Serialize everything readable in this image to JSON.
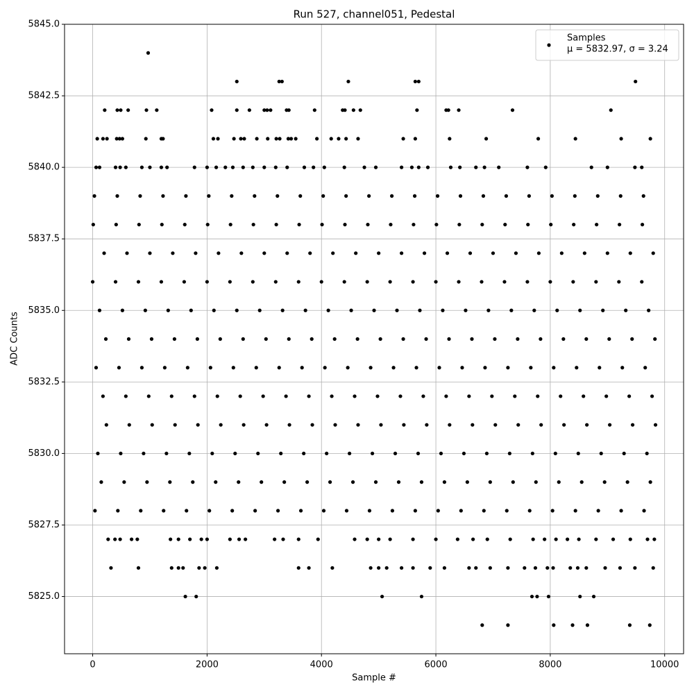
{
  "chart_data": {
    "type": "scatter",
    "title": "Run 527, channel051, Pedestal",
    "xlabel": "Sample #",
    "ylabel": "ADC Counts",
    "xlim": [
      -492,
      10331
    ],
    "ylim": [
      5823,
      5845
    ],
    "xticks": [
      0,
      2000,
      4000,
      6000,
      8000,
      10000
    ],
    "yticks": [
      {
        "value": 5825,
        "label": "5825.0"
      },
      5827.5,
      {
        "value": 5830,
        "label": "5830.0"
      },
      5832.5,
      {
        "value": 5835,
        "label": "5835.0"
      },
      5837.5,
      {
        "value": 5840,
        "label": "5840.0"
      },
      5842.5,
      {
        "value": 5845,
        "label": "5845.0"
      }
    ],
    "grid": true,
    "legend": "upper right",
    "legend_note": "μ = 5832.97, σ = 3.24",
    "series": [
      {
        "name": "Samples",
        "color": "#000000",
        "x": [
          970,
          2520,
          3260,
          3310,
          4470,
          5640,
          5700,
          9490,
          210,
          430,
          490,
          620,
          940,
          1120,
          2080,
          2520,
          2740,
          3000,
          3050,
          3110,
          3390,
          3430,
          3880,
          4370,
          4410,
          4560,
          4680,
          5670,
          6180,
          6220,
          6400,
          7340,
          9060,
          80,
          180,
          250,
          420,
          470,
          520,
          930,
          1200,
          1230,
          2110,
          2190,
          2470,
          2590,
          2650,
          2870,
          3060,
          3210,
          3270,
          3420,
          3470,
          3550,
          3920,
          4170,
          4300,
          4430,
          4640,
          5430,
          5640,
          6240,
          6880,
          7790,
          8440,
          9240,
          9750,
          60,
          120,
          400,
          480,
          580,
          860,
          1000,
          1200,
          1300,
          1780,
          2000,
          2160,
          2320,
          2450,
          2630,
          2800,
          3000,
          3200,
          3400,
          3700,
          3860,
          4050,
          4400,
          4750,
          4950,
          5400,
          5580,
          5700,
          5860,
          6260,
          6420,
          6700,
          6850,
          7100,
          7600,
          7920,
          8720,
          9000,
          9480,
          9600,
          30,
          430,
          830,
          1230,
          1630,
          2030,
          2430,
          2830,
          3230,
          3630,
          4030,
          4430,
          4830,
          5230,
          5630,
          6030,
          6430,
          6830,
          7230,
          7630,
          8030,
          8430,
          8830,
          9230,
          9630,
          10,
          410,
          810,
          1210,
          1610,
          2010,
          2410,
          2810,
          3210,
          3610,
          4010,
          4410,
          4810,
          5210,
          5610,
          6010,
          6410,
          6810,
          7210,
          7610,
          8010,
          8410,
          8810,
          9210,
          9610,
          200,
          600,
          1000,
          1400,
          1800,
          2200,
          2600,
          3000,
          3400,
          3800,
          4200,
          4600,
          5000,
          5400,
          5800,
          6200,
          6600,
          7000,
          7400,
          7800,
          8200,
          8600,
          9000,
          9400,
          9800,
          0,
          400,
          800,
          1200,
          1600,
          2000,
          2400,
          2800,
          3200,
          3600,
          4000,
          4400,
          4800,
          5200,
          5600,
          6000,
          6400,
          6800,
          7200,
          7600,
          8000,
          8400,
          8800,
          9200,
          9600,
          120,
          520,
          920,
          1320,
          1720,
          2120,
          2520,
          2920,
          3320,
          3720,
          4120,
          4520,
          4920,
          5320,
          5720,
          6120,
          6520,
          6920,
          7320,
          7720,
          8120,
          8520,
          8920,
          9320,
          9720,
          230,
          630,
          1030,
          1430,
          1830,
          2230,
          2630,
          3030,
          3430,
          3830,
          4230,
          4630,
          5030,
          5430,
          5830,
          6230,
          6630,
          7030,
          7430,
          7830,
          8230,
          8630,
          9030,
          9430,
          9830,
          60,
          460,
          860,
          1260,
          1660,
          2060,
          2460,
          2860,
          3260,
          3660,
          4060,
          4460,
          4860,
          5260,
          5660,
          6060,
          6460,
          6860,
          7260,
          7660,
          8060,
          8460,
          8860,
          9260,
          9660,
          180,
          580,
          980,
          1380,
          1780,
          2180,
          2580,
          2980,
          3380,
          3780,
          4180,
          4580,
          4980,
          5380,
          5780,
          6180,
          6580,
          6980,
          7380,
          7780,
          8180,
          8580,
          8980,
          9380,
          9780,
          240,
          640,
          1040,
          1440,
          1840,
          2240,
          2640,
          3040,
          3440,
          3840,
          4240,
          4640,
          5040,
          5440,
          5840,
          6240,
          6640,
          7040,
          7440,
          7840,
          8240,
          8640,
          9040,
          9440,
          9840,
          90,
          490,
          890,
          1290,
          1690,
          2090,
          2490,
          2890,
          3290,
          3690,
          4090,
          4490,
          4890,
          5290,
          5690,
          6090,
          6490,
          6890,
          7290,
          7690,
          8090,
          8490,
          8890,
          9290,
          9690,
          150,
          550,
          950,
          1350,
          1750,
          2150,
          2550,
          2950,
          3350,
          3750,
          4150,
          4550,
          4950,
          5350,
          5750,
          6150,
          6550,
          6950,
          7350,
          7750,
          8150,
          8550,
          8950,
          9350,
          9750,
          40,
          440,
          840,
          1240,
          1640,
          2040,
          2440,
          2840,
          3240,
          3640,
          4040,
          4440,
          4840,
          5240,
          5640,
          6040,
          6440,
          6840,
          7240,
          7640,
          8040,
          8440,
          8840,
          9240,
          9640,
          270,
          390,
          480,
          680,
          780,
          1360,
          1500,
          1700,
          1900,
          2000,
          2400,
          2560,
          2670,
          3180,
          3330,
          3600,
          3940,
          4580,
          4800,
          5000,
          5200,
          5600,
          6000,
          6380,
          6650,
          6900,
          7300,
          7700,
          7900,
          8100,
          8300,
          8500,
          8800,
          9100,
          9400,
          9700,
          9820,
          320,
          800,
          1380,
          1500,
          1580,
          1860,
          1960,
          2170,
          3600,
          3780,
          4190,
          4860,
          5000,
          5140,
          5400,
          5600,
          5900,
          6150,
          6580,
          6700,
          6950,
          7260,
          7550,
          7740,
          7950,
          8050,
          8350,
          8480,
          8630,
          8960,
          9220,
          9480,
          9800,
          1620,
          1810,
          5060,
          5750,
          7680,
          7770,
          7970,
          8520,
          8760,
          6810,
          7260,
          8060,
          8390,
          8650,
          9390,
          9740
        ],
        "values": [
          5844,
          5843,
          5843,
          5843,
          5843,
          5843,
          5843,
          5843,
          5842,
          5842,
          5842,
          5842,
          5842,
          5842,
          5842,
          5842,
          5842,
          5842,
          5842,
          5842,
          5842,
          5842,
          5842,
          5842,
          5842,
          5842,
          5842,
          5842,
          5842,
          5842,
          5842,
          5842,
          5842,
          5841,
          5841,
          5841,
          5841,
          5841,
          5841,
          5841,
          5841,
          5841,
          5841,
          5841,
          5841,
          5841,
          5841,
          5841,
          5841,
          5841,
          5841,
          5841,
          5841,
          5841,
          5841,
          5841,
          5841,
          5841,
          5841,
          5841,
          5841,
          5841,
          5841,
          5841,
          5841,
          5841,
          5841,
          5840,
          5840,
          5840,
          5840,
          5840,
          5840,
          5840,
          5840,
          5840,
          5840,
          5840,
          5840,
          5840,
          5840,
          5840,
          5840,
          5840,
          5840,
          5840,
          5840,
          5840,
          5840,
          5840,
          5840,
          5840,
          5840,
          5840,
          5840,
          5840,
          5840,
          5840,
          5840,
          5840,
          5840,
          5840,
          5840,
          5840,
          5840,
          5840,
          5840,
          5839,
          5839,
          5839,
          5839,
          5839,
          5839,
          5839,
          5839,
          5839,
          5839,
          5839,
          5839,
          5839,
          5839,
          5839,
          5839,
          5839,
          5839,
          5839,
          5839,
          5839,
          5839,
          5839,
          5839,
          5839,
          5838,
          5838,
          5838,
          5838,
          5838,
          5838,
          5838,
          5838,
          5838,
          5838,
          5838,
          5838,
          5838,
          5838,
          5838,
          5838,
          5838,
          5838,
          5838,
          5838,
          5838,
          5838,
          5838,
          5838,
          5838,
          5837,
          5837,
          5837,
          5837,
          5837,
          5837,
          5837,
          5837,
          5837,
          5837,
          5837,
          5837,
          5837,
          5837,
          5837,
          5837,
          5837,
          5837,
          5837,
          5837,
          5837,
          5837,
          5837,
          5837,
          5837,
          5836,
          5836,
          5836,
          5836,
          5836,
          5836,
          5836,
          5836,
          5836,
          5836,
          5836,
          5836,
          5836,
          5836,
          5836,
          5836,
          5836,
          5836,
          5836,
          5836,
          5836,
          5836,
          5836,
          5836,
          5836,
          5835,
          5835,
          5835,
          5835,
          5835,
          5835,
          5835,
          5835,
          5835,
          5835,
          5835,
          5835,
          5835,
          5835,
          5835,
          5835,
          5835,
          5835,
          5835,
          5835,
          5835,
          5835,
          5835,
          5835,
          5835,
          5834,
          5834,
          5834,
          5834,
          5834,
          5834,
          5834,
          5834,
          5834,
          5834,
          5834,
          5834,
          5834,
          5834,
          5834,
          5834,
          5834,
          5834,
          5834,
          5834,
          5834,
          5834,
          5834,
          5834,
          5834,
          5833,
          5833,
          5833,
          5833,
          5833,
          5833,
          5833,
          5833,
          5833,
          5833,
          5833,
          5833,
          5833,
          5833,
          5833,
          5833,
          5833,
          5833,
          5833,
          5833,
          5833,
          5833,
          5833,
          5833,
          5833,
          5832,
          5832,
          5832,
          5832,
          5832,
          5832,
          5832,
          5832,
          5832,
          5832,
          5832,
          5832,
          5832,
          5832,
          5832,
          5832,
          5832,
          5832,
          5832,
          5832,
          5832,
          5832,
          5832,
          5832,
          5832,
          5831,
          5831,
          5831,
          5831,
          5831,
          5831,
          5831,
          5831,
          5831,
          5831,
          5831,
          5831,
          5831,
          5831,
          5831,
          5831,
          5831,
          5831,
          5831,
          5831,
          5831,
          5831,
          5831,
          5831,
          5831,
          5830,
          5830,
          5830,
          5830,
          5830,
          5830,
          5830,
          5830,
          5830,
          5830,
          5830,
          5830,
          5830,
          5830,
          5830,
          5830,
          5830,
          5830,
          5830,
          5830,
          5830,
          5830,
          5830,
          5830,
          5830,
          5829,
          5829,
          5829,
          5829,
          5829,
          5829,
          5829,
          5829,
          5829,
          5829,
          5829,
          5829,
          5829,
          5829,
          5829,
          5829,
          5829,
          5829,
          5829,
          5829,
          5829,
          5829,
          5829,
          5829,
          5829,
          5828,
          5828,
          5828,
          5828,
          5828,
          5828,
          5828,
          5828,
          5828,
          5828,
          5828,
          5828,
          5828,
          5828,
          5828,
          5828,
          5828,
          5828,
          5828,
          5828,
          5828,
          5828,
          5828,
          5828,
          5828,
          5827,
          5827,
          5827,
          5827,
          5827,
          5827,
          5827,
          5827,
          5827,
          5827,
          5827,
          5827,
          5827,
          5827,
          5827,
          5827,
          5827,
          5827,
          5827,
          5827,
          5827,
          5827,
          5827,
          5827,
          5827,
          5827,
          5827,
          5827,
          5827,
          5827,
          5827,
          5827,
          5827,
          5827,
          5827,
          5827,
          5827,
          5826,
          5826,
          5826,
          5826,
          5826,
          5826,
          5826,
          5826,
          5826,
          5826,
          5826,
          5826,
          5826,
          5826,
          5826,
          5826,
          5826,
          5826,
          5826,
          5826,
          5826,
          5826,
          5826,
          5826,
          5826,
          5826,
          5826,
          5826,
          5826,
          5826,
          5826,
          5826,
          5826,
          5825,
          5825,
          5825,
          5825,
          5825,
          5825,
          5825,
          5825,
          5825,
          5824,
          5824,
          5824,
          5824,
          5824,
          5824,
          5824
        ]
      }
    ]
  }
}
